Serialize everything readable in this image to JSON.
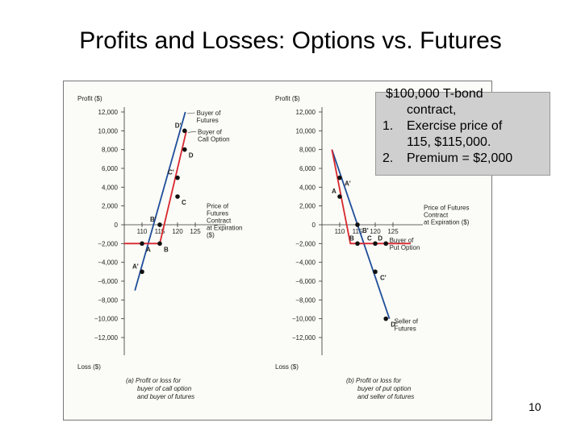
{
  "slide": {
    "title": "Profits and Losses: Options vs. Futures",
    "page_number": "10"
  },
  "note_box": {
    "line1": "$100,000 T-bond",
    "line2": "contract,",
    "item1_num": "1.",
    "item1_a": "Exercise price of",
    "item1_b": "115, $115,000.",
    "item2_num": "2.",
    "item2_a": "Premium = $2,000"
  },
  "colors": {
    "futures_line": "#1f4e9a",
    "option_line": "#d8262e",
    "point": "#111111",
    "note_bg": "#cfcfcf"
  },
  "chart_data": [
    {
      "type": "line",
      "ylabel": "Profit ($)",
      "ylabel_bottom": "Loss ($)",
      "xlabel": "Price of Futures Contract at Expiration ($)",
      "xticks": [
        "110",
        "115",
        "120",
        "125"
      ],
      "yticks": [
        "12,000",
        "10,000",
        "8,000",
        "6,000",
        "4,000",
        "2,000",
        "0",
        "−2,000",
        "−4,000",
        "−6,000",
        "−8,000",
        "−10,000",
        "−12,000"
      ],
      "ylim": [
        -12000,
        12000
      ],
      "xlim": [
        105,
        130
      ],
      "series": [
        {
          "name": "Buyer of Futures",
          "x": [
            108,
            122.2
          ],
          "y": [
            -7000,
            12000
          ]
        },
        {
          "name": "Buyer of Call Option",
          "x": [
            105,
            115,
            122.5
          ],
          "y": [
            -2000,
            -2000,
            10000
          ]
        }
      ],
      "points": [
        {
          "label": "A'",
          "x": 110,
          "y": -5000
        },
        {
          "label": "A",
          "x": 110,
          "y": -2000
        },
        {
          "label": "B'",
          "x": 115,
          "y": 0
        },
        {
          "label": "B",
          "x": 115,
          "y": -2000
        },
        {
          "label": "C'",
          "x": 120,
          "y": 5000
        },
        {
          "label": "C",
          "x": 120,
          "y": 3000
        },
        {
          "label": "D'",
          "x": 122,
          "y": 10000
        },
        {
          "label": "D",
          "x": 122,
          "y": 8000
        }
      ],
      "caption": [
        "(a)  Profit or loss for",
        "buyer of call option",
        "and buyer of futures"
      ],
      "caption_lines": [
        "(a)  Profit or loss for",
        "buyer of call option",
        "and buyer of futures"
      ]
    },
    {
      "type": "line",
      "ylabel": "Profit ($)",
      "ylabel_bottom": "Loss ($)",
      "xlabel": "Price of Futures Contract at Expiration ($)",
      "xticks": [
        "110",
        "115",
        "120",
        "125"
      ],
      "yticks": [
        "12,000",
        "10,000",
        "8,000",
        "6,000",
        "4,000",
        "2,000",
        "0",
        "−2,000",
        "−4,000",
        "−6,000",
        "−8,000",
        "−10,000",
        "−12,000"
      ],
      "ylim": [
        -12000,
        12000
      ],
      "xlim": [
        105,
        130
      ],
      "series": [
        {
          "name": "Seller of Futures",
          "x": [
            107.8,
            124
          ],
          "y": [
            8000,
            -10000
          ]
        },
        {
          "name": "Buyer of Put Option",
          "x": [
            107.8,
            113,
            130
          ],
          "y": [
            8000,
            -2000,
            -2000
          ]
        }
      ],
      "points": [
        {
          "label": "A'",
          "x": 110,
          "y": 5000
        },
        {
          "label": "A",
          "x": 110,
          "y": 3000
        },
        {
          "label": "B'",
          "x": 115,
          "y": 0
        },
        {
          "label": "B",
          "x": 115,
          "y": -2000
        },
        {
          "label": "C",
          "x": 120,
          "y": -2000
        },
        {
          "label": "C'",
          "x": 120,
          "y": -5000
        },
        {
          "label": "D",
          "x": 123,
          "y": -2000
        },
        {
          "label": "D'",
          "x": 123,
          "y": -10000
        }
      ],
      "caption": [
        "(b)  Profit or loss for",
        "buyer of put option",
        "and seller of futures"
      ],
      "caption_lines": [
        "(b)  Profit or loss for",
        "buyer of put option",
        "and seller of futures"
      ]
    }
  ]
}
